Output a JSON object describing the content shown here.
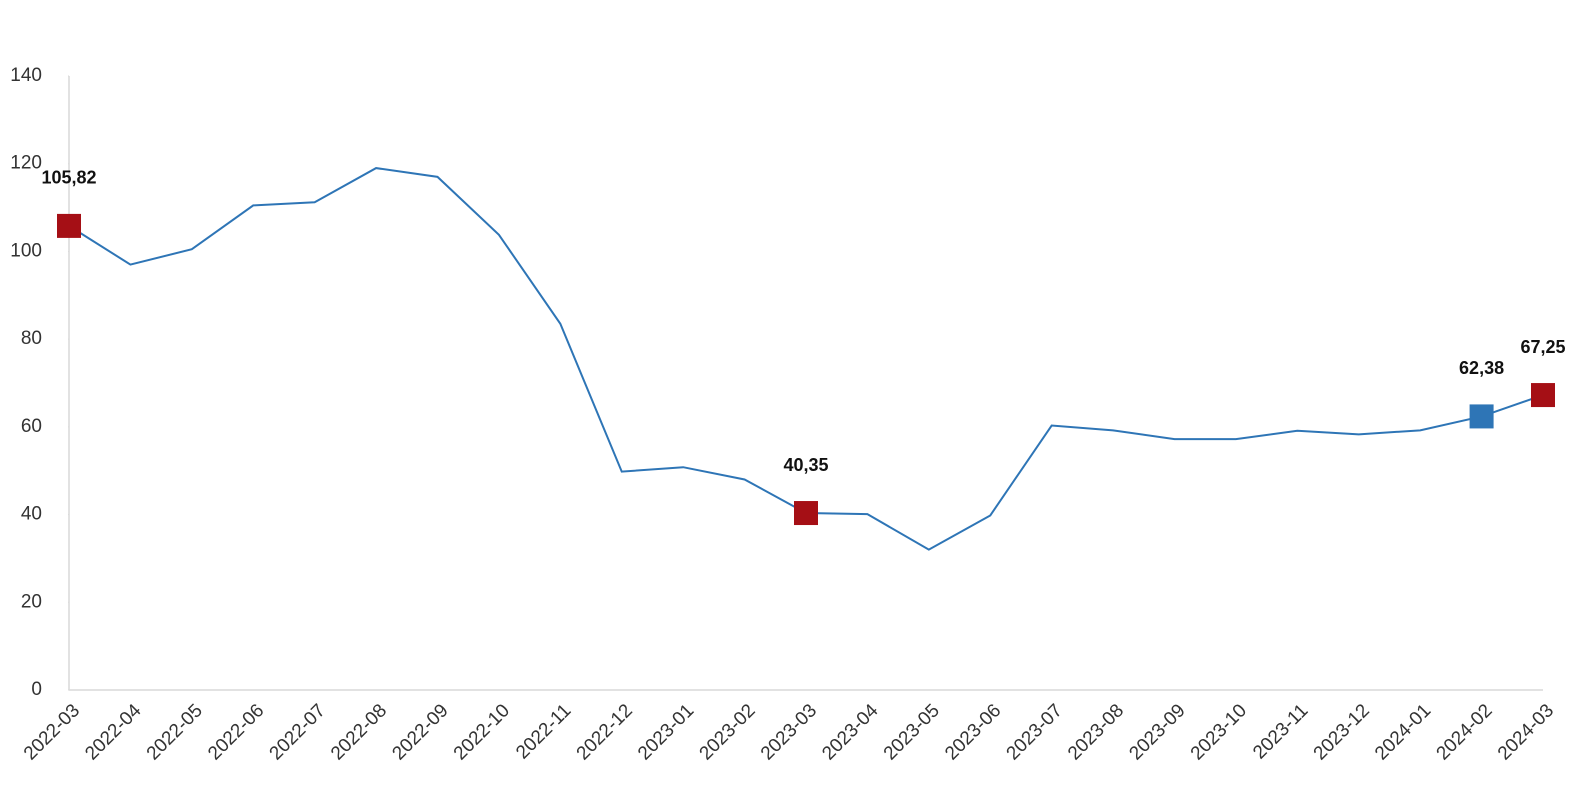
{
  "chart_data": {
    "type": "line",
    "categories": [
      "2022-03",
      "2022-04",
      "2022-05",
      "2022-06",
      "2022-07",
      "2022-08",
      "2022-09",
      "2022-10",
      "2022-11",
      "2022-12",
      "2023-01",
      "2023-02",
      "2023-03",
      "2023-04",
      "2023-05",
      "2023-06",
      "2023-07",
      "2023-08",
      "2023-09",
      "2023-10",
      "2023-11",
      "2023-12",
      "2024-01",
      "2024-02",
      "2024-03"
    ],
    "series": [
      {
        "color": "#2e75b6",
        "values": [
          105.82,
          97,
          100.5,
          110.5,
          111.2,
          119,
          117,
          103.8,
          83.5,
          49.8,
          50.8,
          48,
          40.35,
          40.1,
          32,
          39.8,
          60.3,
          59.2,
          57.2,
          57.2,
          59.1,
          58.3,
          59.2,
          62.38,
          67.25
        ],
        "value_labels": [
          "105,82",
          null,
          null,
          null,
          null,
          null,
          null,
          null,
          null,
          null,
          null,
          null,
          "40,35",
          null,
          null,
          null,
          null,
          null,
          null,
          null,
          null,
          null,
          null,
          "62,38",
          "67,25"
        ],
        "marker_colors": [
          "#a50f15",
          null,
          null,
          null,
          null,
          null,
          null,
          null,
          null,
          null,
          null,
          null,
          "#a50f15",
          null,
          null,
          null,
          null,
          null,
          null,
          null,
          null,
          null,
          null,
          "#2e75b6",
          "#a50f15"
        ]
      }
    ],
    "ylim": [
      0,
      140
    ],
    "yticks": [
      0,
      20,
      40,
      60,
      80,
      100,
      120,
      140
    ]
  }
}
